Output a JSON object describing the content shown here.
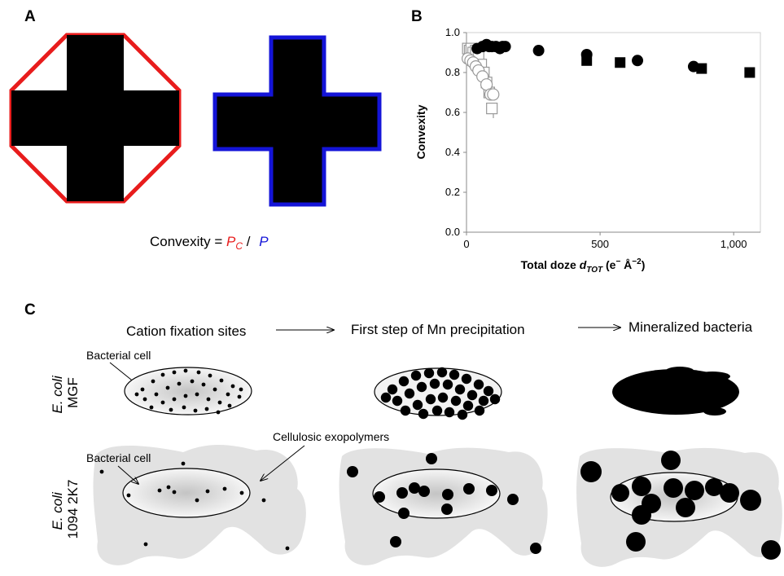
{
  "panel_a": {
    "letter": "A",
    "formula_prefix": "Convexity = ",
    "pc_symbol": "P",
    "pc_subscript": "C",
    "divider": " / ",
    "p_symbol": "P",
    "colors": {
      "convex_hull": "#e81c1c",
      "perimeter": "#1414d8"
    }
  },
  "panel_b": {
    "letter": "B"
  },
  "panel_c": {
    "letter": "C",
    "stages": [
      "Cation fixation sites",
      "First step of Mn precipitation",
      "Mineralized bacteria"
    ],
    "row1_label_italic": "E. coli",
    "row1_label": "MGF",
    "row2_label_italic": "E. coli",
    "row2_label": "1094 2K7",
    "annotation_cell_1": "Bacterial cell",
    "annotation_cell_2": "Bacterial cell",
    "annotation_exopolymers": "Cellulosic exopolymers"
  },
  "chart_data": {
    "type": "scatter",
    "title": "",
    "xlabel_main": "Total doze ",
    "xlabel_symbol": "d",
    "xlabel_subscript": "TOT",
    "xlabel_units_open": " (e",
    "xlabel_minus": "−",
    "xlabel_units_close": " Å",
    "xlabel_exp": "−2",
    "xlabel_end": ")",
    "ylabel": "Convexity",
    "xlim": [
      0,
      1100
    ],
    "ylim": [
      0,
      1.0
    ],
    "xticks": [
      0,
      500,
      1000
    ],
    "xtick_labels": [
      "0",
      "500",
      "1,000"
    ],
    "yticks": [
      0,
      0.2,
      0.4,
      0.6,
      0.8,
      1.0
    ],
    "ytick_labels": [
      "0.0",
      "0.2",
      "0.4",
      "0.6",
      "0.8",
      "1.0"
    ],
    "series": [
      {
        "marker": "filled-circle",
        "x": [
          40,
          60,
          75,
          85,
          95,
          110,
          125,
          135,
          145,
          270,
          450,
          640,
          850
        ],
        "y": [
          0.92,
          0.93,
          0.94,
          0.93,
          0.93,
          0.93,
          0.92,
          0.93,
          0.93,
          0.91,
          0.89,
          0.86,
          0.83
        ]
      },
      {
        "marker": "filled-square",
        "x": [
          450,
          575,
          880,
          1060
        ],
        "y": [
          0.86,
          0.85,
          0.82,
          0.8
        ]
      },
      {
        "marker": "open-circle",
        "x": [
          5,
          15,
          25,
          35,
          45,
          60,
          75,
          90,
          100
        ],
        "y": [
          0.87,
          0.86,
          0.85,
          0.83,
          0.81,
          0.78,
          0.74,
          0.69,
          0.69
        ]
      },
      {
        "marker": "open-square",
        "x": [
          5,
          12,
          18,
          25,
          35,
          45,
          55,
          65,
          75,
          85,
          95
        ],
        "y": [
          0.92,
          0.91,
          0.92,
          0.9,
          0.91,
          0.88,
          0.84,
          0.8,
          0.75,
          0.7,
          0.62
        ]
      }
    ]
  }
}
